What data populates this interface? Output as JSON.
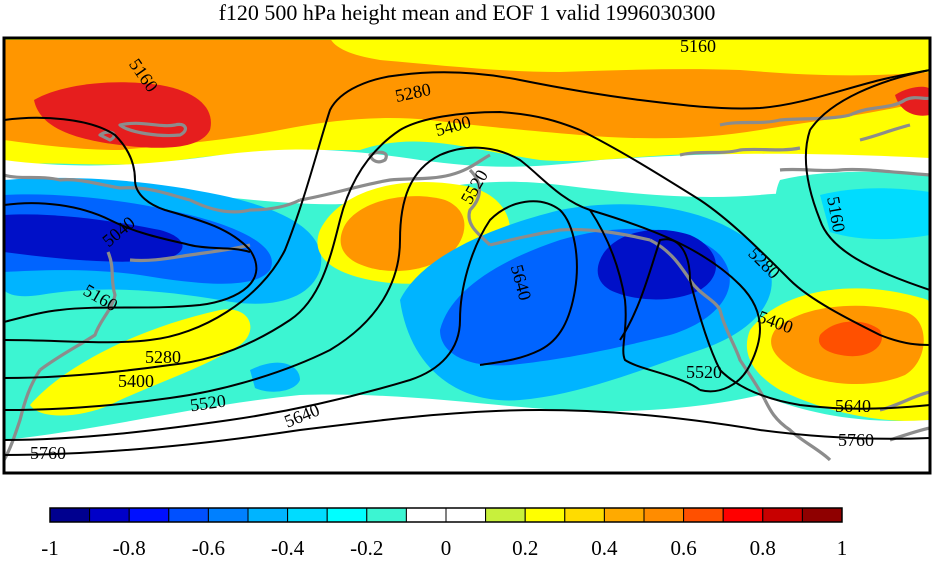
{
  "title": "f120 500 hPa height mean and EOF 1 valid 1996030300",
  "contour_labels": {
    "c5160_a": "5160",
    "c5160_b": "5160",
    "c5160_c": "5160",
    "c5160_d": "5160",
    "c5280_a": "5280",
    "c5280_b": "5280",
    "c5280_c": "5280",
    "c5400_a": "5400",
    "c5400_b": "5400",
    "c5400_c": "5400",
    "c5520_a": "5520",
    "c5520_b": "5520",
    "c5520_c": "5520",
    "c5640_a": "5640",
    "c5640_b": "5640",
    "c5640_c": "5640",
    "c5760_a": "5760",
    "c5760_b": "5760",
    "c5040_a": "5040"
  },
  "colorbar": {
    "colors": [
      "#00008f",
      "#0000c8",
      "#0010ff",
      "#0050ff",
      "#0080ff",
      "#00b4ff",
      "#00dcff",
      "#00ffff",
      "#3cf5d2",
      "#ffffff",
      "#ffffff",
      "#c8f03c",
      "#ffff00",
      "#ffdc00",
      "#ffaa00",
      "#ff8c00",
      "#ff5000",
      "#ff0000",
      "#c80000",
      "#8f0000"
    ],
    "ticks": [
      "-1",
      "-0.8",
      "-0.6",
      "-0.4",
      "-0.2",
      "0",
      "0.2",
      "0.4",
      "0.6",
      "0.8",
      "1"
    ]
  },
  "palette": {
    "dark_blue": "#0010c8",
    "blue": "#0064ff",
    "light_blue": "#00b4ff",
    "cyan": "#00dcff",
    "aqua": "#3cf5d2",
    "white": "#ffffff",
    "yellow": "#ffff00",
    "gold": "#ffdc00",
    "orange": "#ff9600",
    "red_orange": "#ff5000",
    "red": "#e61e1e",
    "coast": "#8c8c8c"
  }
}
